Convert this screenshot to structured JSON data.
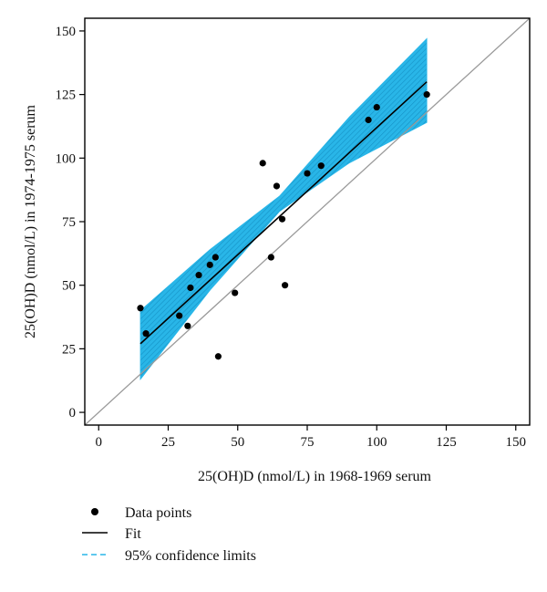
{
  "chart_data": {
    "type": "scatter",
    "xlabel": "25(OH)D (nmol/L) in 1968-1969 serum",
    "ylabel": "25(OH)D (nmol/L) in 1974-1975 serum",
    "xlim": [
      -5,
      155
    ],
    "ylim": [
      -5,
      155
    ],
    "x_ticks": [
      0,
      25,
      50,
      75,
      100,
      125,
      150
    ],
    "y_ticks": [
      0,
      25,
      50,
      75,
      100,
      125,
      150
    ],
    "grid": false,
    "legend_position": "bottom-left",
    "series": [
      {
        "name": "Data points",
        "kind": "scatter",
        "points": [
          [
            15,
            41
          ],
          [
            17,
            31
          ],
          [
            29,
            38
          ],
          [
            32,
            34
          ],
          [
            33,
            49
          ],
          [
            36,
            54
          ],
          [
            40,
            58
          ],
          [
            42,
            61
          ],
          [
            43,
            22
          ],
          [
            49,
            47
          ],
          [
            59,
            98
          ],
          [
            62,
            61
          ],
          [
            64,
            89
          ],
          [
            66,
            76
          ],
          [
            67,
            50
          ],
          [
            75,
            94
          ],
          [
            80,
            97
          ],
          [
            97,
            115
          ],
          [
            100,
            120
          ],
          [
            118,
            125
          ]
        ]
      },
      {
        "name": "Fit",
        "kind": "line",
        "points": [
          [
            15,
            27
          ],
          [
            118,
            130
          ]
        ]
      },
      {
        "name": "95% confidence limits",
        "kind": "band",
        "x": [
          15,
          40,
          65,
          90,
          118
        ],
        "lower": [
          13,
          48,
          79,
          98,
          114
        ],
        "upper": [
          40,
          64,
          85,
          116,
          147
        ]
      }
    ],
    "reference_line": {
      "points": [
        [
          -5,
          -5
        ],
        [
          155,
          155
        ]
      ]
    },
    "colors": {
      "band": "#29b6e8",
      "band_hatch": "#1592c6",
      "fit": "#000000",
      "identity": "#9a9a9a",
      "points": "#000000"
    }
  },
  "legend": {
    "items": [
      {
        "label": "Data points"
      },
      {
        "label": "Fit"
      },
      {
        "label": "95% confidence limits"
      }
    ]
  }
}
